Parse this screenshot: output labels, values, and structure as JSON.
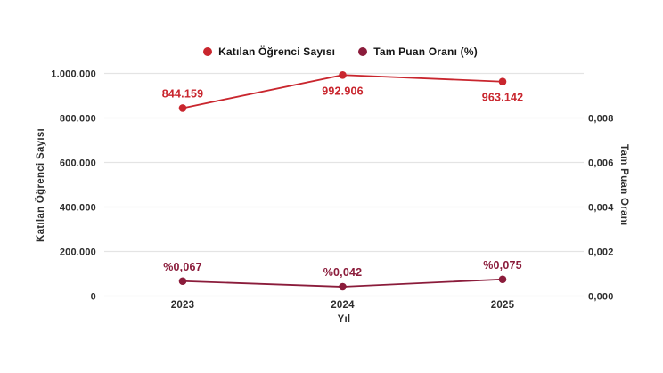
{
  "chart_data": {
    "type": "line",
    "title": "",
    "categories": [
      "2023",
      "2024",
      "2025"
    ],
    "xlabel": "Yıl",
    "grid": true,
    "legend_position": "top",
    "left_axis": {
      "label": "Katılan Öğrenci Sayısı",
      "min": 0,
      "max": 1000000,
      "ticks": [
        "0",
        "200.000",
        "400.000",
        "600.000",
        "800.000",
        "1.000.000"
      ]
    },
    "right_axis": {
      "label": "Tam Puan Oranı",
      "min": 0,
      "tick_step": 0.002,
      "ticks": [
        "0,000",
        "0,002",
        "0,004",
        "0,006",
        "0,008"
      ]
    },
    "series": [
      {
        "name": "Katılan Öğrenci Sayısı",
        "axis": "left",
        "color": "#c9262e",
        "values": [
          844159,
          992906,
          963142
        ],
        "labels": [
          "844.159",
          "992.906",
          "963.142"
        ],
        "label_positions": [
          "above",
          "below",
          "below"
        ]
      },
      {
        "name": "Tam Puan Oranı (%)",
        "axis": "right",
        "color": "#8b1c3b",
        "values": [
          0.00067,
          0.00042,
          0.00075
        ],
        "labels": [
          "%0,067",
          "%0,042",
          "%0,075"
        ],
        "label_positions": [
          "above",
          "above",
          "above"
        ]
      }
    ]
  }
}
